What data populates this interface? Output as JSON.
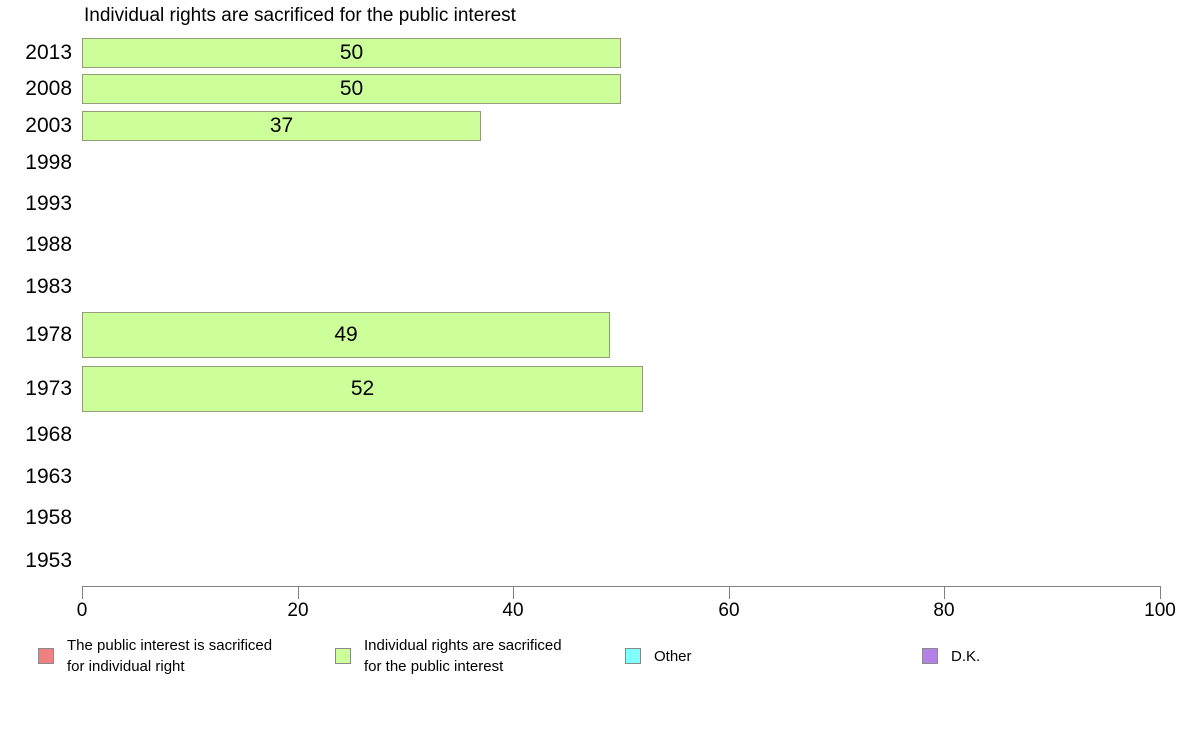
{
  "chart_data": {
    "type": "bar",
    "orientation": "horizontal",
    "title": "Individual rights are sacrificed for the public interest",
    "categories": [
      "2013",
      "2008",
      "2003",
      "1998",
      "1993",
      "1988",
      "1983",
      "1978",
      "1973",
      "1968",
      "1963",
      "1958",
      "1953"
    ],
    "series": [
      {
        "name": "The public interest is sacrificed for individual right",
        "color": "#f08080",
        "values": [
          null,
          null,
          null,
          null,
          null,
          null,
          null,
          null,
          null,
          null,
          null,
          null,
          null
        ]
      },
      {
        "name": "Individual rights are sacrificed for the public interest",
        "color": "#ccff99",
        "values": [
          50,
          50,
          37,
          null,
          null,
          null,
          null,
          49,
          52,
          null,
          null,
          null,
          null
        ]
      },
      {
        "name": "Other",
        "color": "#80ffff",
        "values": [
          null,
          null,
          null,
          null,
          null,
          null,
          null,
          null,
          null,
          null,
          null,
          null,
          null
        ]
      },
      {
        "name": "D.K.",
        "color": "#b380e6",
        "values": [
          null,
          null,
          null,
          null,
          null,
          null,
          null,
          null,
          null,
          null,
          null,
          null,
          null
        ]
      }
    ],
    "xlim": [
      0,
      100
    ],
    "x_ticks": [
      0,
      20,
      40,
      60,
      80,
      100
    ],
    "bar_value_labels": true,
    "grid": false,
    "legend_position": "bottom",
    "axis_color": "#808080"
  },
  "legend": {
    "items": [
      {
        "lines": [
          "The public interest is sacrificed",
          "for individual right"
        ],
        "color": "#f08080"
      },
      {
        "lines": [
          "Individual rights are sacrificed",
          "for the public interest"
        ],
        "color": "#ccff99"
      },
      {
        "lines": [
          "Other"
        ],
        "color": "#80ffff"
      },
      {
        "lines": [
          "D.K."
        ],
        "color": "#b380e6"
      }
    ]
  }
}
